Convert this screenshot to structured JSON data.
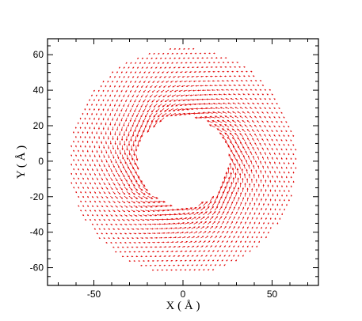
{
  "chart_data": {
    "type": "vector-field",
    "xlabel": "X ( Å )",
    "ylabel": "Y ( Å )",
    "xlim": [
      -76,
      76
    ],
    "ylim": [
      -70,
      69
    ],
    "x_ticks": [
      -50,
      0,
      50
    ],
    "y_ticks": [
      -60,
      -40,
      -20,
      0,
      20,
      40,
      60
    ],
    "grid": false,
    "field": {
      "shape": "annulus",
      "inner_radius": 26,
      "outer_radius": 64,
      "grid_spacing": 2.6,
      "rotation": "counter-clockwise",
      "max_vector_length": 3.3,
      "min_vector_length": 0.7
    },
    "color": "#e00000"
  }
}
